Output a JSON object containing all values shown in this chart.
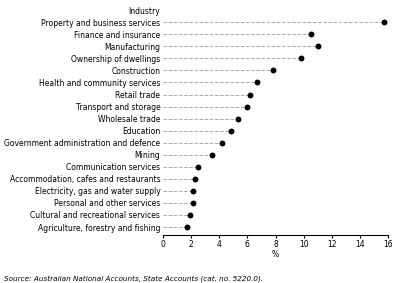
{
  "source": "Source: Australian National Accounts, State Accounts (cat. no. 5220.0).",
  "xlabel": "%",
  "xlim": [
    0,
    16
  ],
  "xticks": [
    0,
    2,
    4,
    6,
    8,
    10,
    12,
    14,
    16
  ],
  "categories": [
    "Industry",
    "Property and business services",
    "Finance and insurance",
    "Manufacturing",
    "Ownership of dwellings",
    "Construction",
    "Health and community services",
    "Retail trade",
    "Transport and storage",
    "Wholesale trade",
    "Education",
    "Government administration and defence",
    "Mining",
    "Communication services",
    "Accommodation, cafes and restaurants",
    "Electricity, gas and water supply",
    "Personal and other services",
    "Cultural and recreational services",
    "Agriculture, forestry and fishing"
  ],
  "values": [
    null,
    15.7,
    10.5,
    11.0,
    9.8,
    7.8,
    6.7,
    6.2,
    6.0,
    5.3,
    4.8,
    4.2,
    3.5,
    2.5,
    2.3,
    2.1,
    2.1,
    1.9,
    1.7
  ],
  "dot_color": "#000000",
  "dot_size": 18,
  "line_color": "#aaaaaa",
  "line_style": "--",
  "line_width": 0.7,
  "bg_color": "#ffffff",
  "font_size": 5.5,
  "source_font_size": 5.2
}
